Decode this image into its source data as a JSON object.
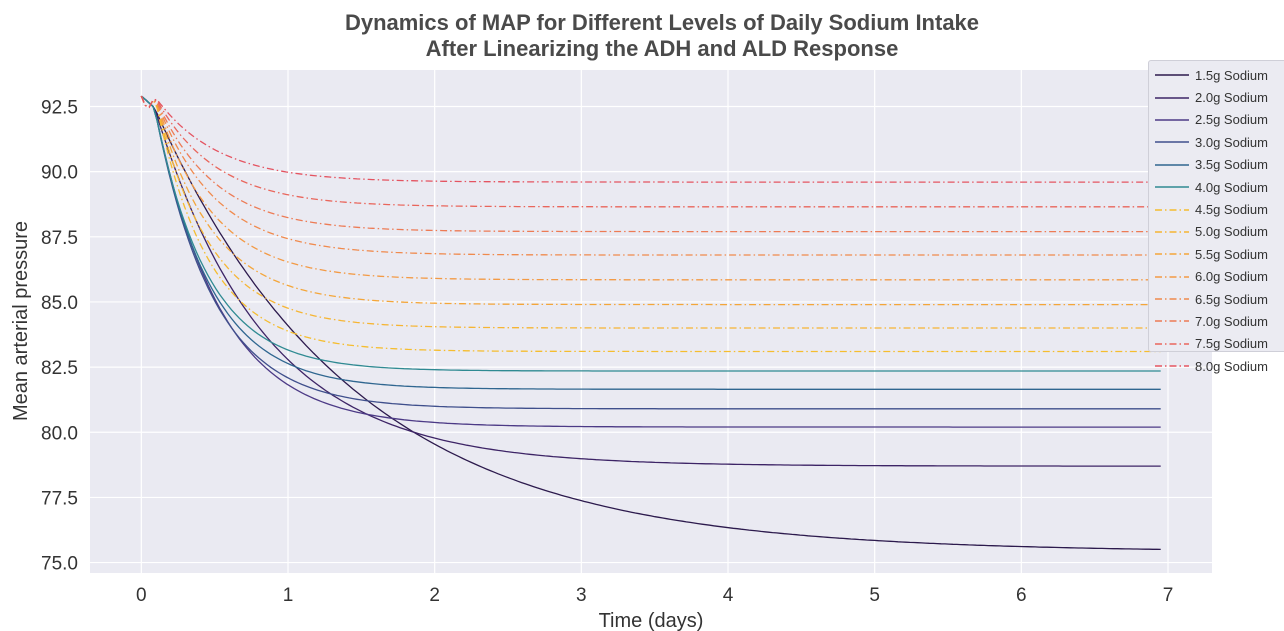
{
  "chart_data": {
    "type": "line",
    "title": "Dynamics of MAP for Different Levels of Daily Sodium Intake",
    "subtitle": "After Linearizing the ADH and ALD Response",
    "xlabel": "Time (days)",
    "ylabel": "Mean arterial pressure",
    "xlim": [
      -0.35,
      7.3
    ],
    "ylim": [
      74.6,
      93.9
    ],
    "xticks": [
      "0",
      "1",
      "2",
      "3",
      "4",
      "5",
      "6",
      "7"
    ],
    "yticks": [
      "75.0",
      "77.5",
      "80.0",
      "82.5",
      "85.0",
      "87.5",
      "90.0",
      "92.5"
    ],
    "grid": true,
    "legend_position": "upper-right",
    "x_end": 6.95,
    "initial_value": 92.9,
    "series": [
      {
        "name": "1.5g Sodium",
        "final": 75.4,
        "tau": 1.35,
        "color": "#2c1a4d",
        "dash": false
      },
      {
        "name": "2.0g Sodium",
        "final": 78.7,
        "tau": 0.75,
        "color": "#3d2466",
        "dash": false
      },
      {
        "name": "2.5g Sodium",
        "final": 80.2,
        "tau": 0.45,
        "color": "#4c3a86",
        "dash": false
      },
      {
        "name": "3.0g Sodium",
        "final": 80.9,
        "tau": 0.4,
        "color": "#3f4f8c",
        "dash": false
      },
      {
        "name": "3.5g Sodium",
        "final": 81.65,
        "tau": 0.38,
        "color": "#2f6690",
        "dash": false
      },
      {
        "name": "4.0g Sodium",
        "final": 82.35,
        "tau": 0.36,
        "color": "#2f8a92",
        "dash": false
      },
      {
        "name": "4.5g Sodium",
        "final": 83.1,
        "tau": 0.36,
        "color": "#f5bd2f",
        "dash": true
      },
      {
        "name": "5.0g Sodium",
        "final": 84.0,
        "tau": 0.37,
        "color": "#f6b533",
        "dash": true
      },
      {
        "name": "5.5g Sodium",
        "final": 84.9,
        "tau": 0.38,
        "color": "#f4a63a",
        "dash": true
      },
      {
        "name": "6.0g Sodium",
        "final": 85.85,
        "tau": 0.39,
        "color": "#f39a45",
        "dash": true
      },
      {
        "name": "6.5g Sodium",
        "final": 86.8,
        "tau": 0.4,
        "color": "#f08a4d",
        "dash": true
      },
      {
        "name": "7.0g Sodium",
        "final": 87.7,
        "tau": 0.4,
        "color": "#ed7b55",
        "dash": true
      },
      {
        "name": "7.5g Sodium",
        "final": 88.65,
        "tau": 0.41,
        "color": "#e9665c",
        "dash": true
      },
      {
        "name": "8.0g Sodium",
        "final": 89.6,
        "tau": 0.42,
        "color": "#e45461",
        "dash": true
      }
    ]
  }
}
